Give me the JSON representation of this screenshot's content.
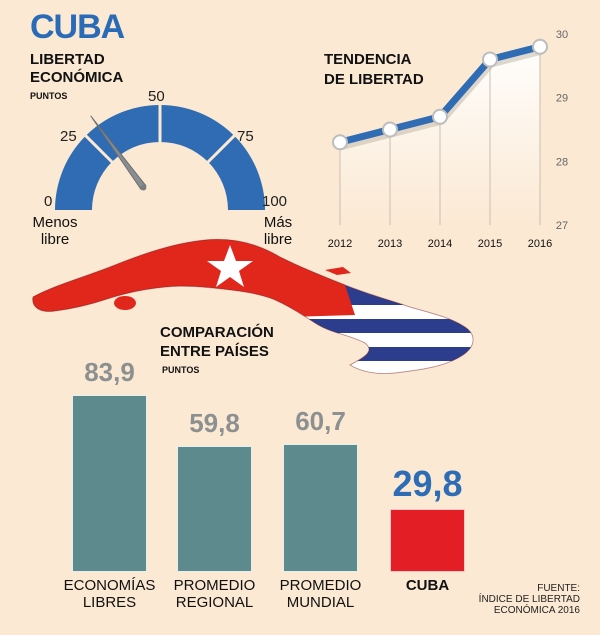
{
  "title": "CUBA",
  "gauge": {
    "heading": [
      "LIBERTAD",
      "ECONÓMICA"
    ],
    "unit": "PUNTOS",
    "ticks": [
      "0",
      "25",
      "50",
      "75",
      "100"
    ],
    "min_label": [
      "Menos",
      "libre"
    ],
    "max_label": [
      "Más",
      "libre"
    ],
    "value": 29.8,
    "range": [
      0,
      100
    ],
    "color": "#2f6cb3"
  },
  "trend": {
    "heading": [
      "TENDENCIA",
      "DE LIBERTAD"
    ],
    "color": "#2f6cb3"
  },
  "comparison": {
    "heading": [
      "COMPARACIÓN",
      "ENTRE PAÍSES"
    ],
    "unit": "PUNTOS"
  },
  "source": [
    "FUENTE:",
    "ÍNDICE DE LIBERTAD",
    "ECONÓMICA 2016"
  ],
  "chart_data": [
    {
      "type": "line",
      "title": "TENDENCIA DE LIBERTAD",
      "x": [
        "2012",
        "2013",
        "2014",
        "2015",
        "2016"
      ],
      "series": [
        {
          "values": [
            28.3,
            28.5,
            28.7,
            29.6,
            29.8
          ]
        }
      ],
      "ylim": [
        27,
        30
      ],
      "yticks": [
        "27",
        "28",
        "29",
        "30"
      ]
    },
    {
      "type": "bar",
      "title": "COMPARACIÓN ENTRE PAÍSES",
      "categories": [
        [
          "ECONOMÍAS",
          "LIBRES"
        ],
        [
          "PROMEDIO",
          "REGIONAL"
        ],
        [
          "PROMEDIO",
          "MUNDIAL"
        ],
        [
          "CUBA"
        ]
      ],
      "values": [
        83.9,
        59.8,
        60.7,
        29.8
      ],
      "value_labels": [
        "83,9",
        "59,8",
        "60,7",
        "29,8"
      ],
      "colors": [
        "#5d8a8d",
        "#5d8a8d",
        "#5d8a8d",
        "#e31e24"
      ],
      "ylim": [
        0,
        100
      ]
    }
  ]
}
